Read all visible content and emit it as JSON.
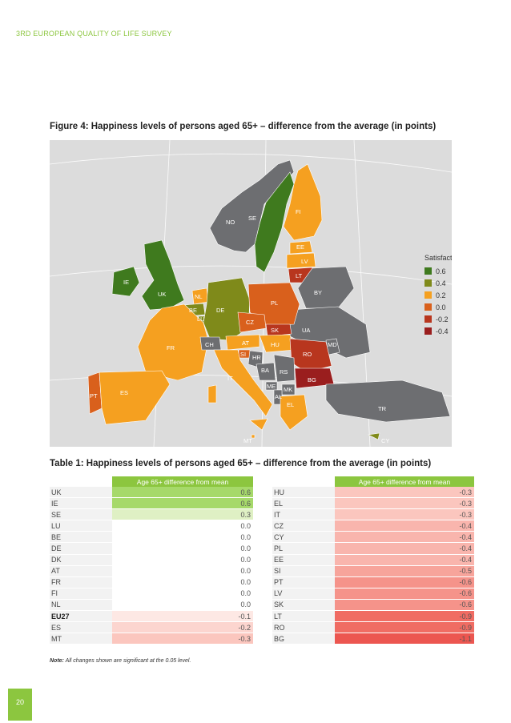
{
  "header": {
    "running_title": "3RD EUROPEAN QUALITY OF LIFE SURVEY"
  },
  "figure": {
    "title": "Figure 4: Happiness levels of persons aged 65+ – difference from the average (in points)",
    "legend_title": "Satisfaction",
    "legend": [
      {
        "label": "0.6",
        "color": "#3f7a1e"
      },
      {
        "label": "0.4",
        "color": "#7f8a1a"
      },
      {
        "label": "0.2",
        "color": "#f5a020"
      },
      {
        "label": "0.0",
        "color": "#d9601c"
      },
      {
        "label": "-0.2",
        "color": "#b8361e"
      },
      {
        "label": "-0.4",
        "color": "#9a1e1e"
      }
    ],
    "country_labels": [
      "NO",
      "SE",
      "FI",
      "EE",
      "LV",
      "LT",
      "BY",
      "IE",
      "UK",
      "NL",
      "BE",
      "LU",
      "DE",
      "PL",
      "CZ",
      "SK",
      "UA",
      "MD",
      "FR",
      "CH",
      "AT",
      "HU",
      "RO",
      "SI",
      "HR",
      "BA",
      "RS",
      "BG",
      "ME",
      "MK",
      "AL",
      "EL",
      "TR",
      "PT",
      "ES",
      "IT",
      "MT",
      "CY"
    ]
  },
  "table": {
    "title": "Table 1: Happiness levels of persons aged 65+ – difference from the average (in points)",
    "column_header": "Age 65+ difference from mean",
    "left": [
      {
        "country": "UK",
        "value": "0.6",
        "shade": "#a6d96a",
        "bold": false
      },
      {
        "country": "IE",
        "value": "0.6",
        "shade": "#a6d96a",
        "bold": false
      },
      {
        "country": "SE",
        "value": "0.3",
        "shade": "#dff0c4",
        "bold": false
      },
      {
        "country": "LU",
        "value": "0.0",
        "shade": "#ffffff",
        "bold": false
      },
      {
        "country": "BE",
        "value": "0.0",
        "shade": "#ffffff",
        "bold": false
      },
      {
        "country": "DE",
        "value": "0.0",
        "shade": "#ffffff",
        "bold": false
      },
      {
        "country": "DK",
        "value": "0.0",
        "shade": "#ffffff",
        "bold": false
      },
      {
        "country": "AT",
        "value": "0.0",
        "shade": "#ffffff",
        "bold": false
      },
      {
        "country": "FR",
        "value": "0.0",
        "shade": "#ffffff",
        "bold": false
      },
      {
        "country": "FI",
        "value": "0.0",
        "shade": "#ffffff",
        "bold": false
      },
      {
        "country": "NL",
        "value": "0.0",
        "shade": "#ffffff",
        "bold": false
      },
      {
        "country": "EU27",
        "value": "-0.1",
        "shade": "#fde8e4",
        "bold": true
      },
      {
        "country": "ES",
        "value": "-0.2",
        "shade": "#fcd5cf",
        "bold": false
      },
      {
        "country": "MT",
        "value": "-0.3",
        "shade": "#fbc6be",
        "bold": false
      }
    ],
    "right": [
      {
        "country": "HU",
        "value": "-0.3",
        "shade": "#fbc6be",
        "bold": false
      },
      {
        "country": "EL",
        "value": "-0.3",
        "shade": "#fbc6be",
        "bold": false
      },
      {
        "country": "IT",
        "value": "-0.3",
        "shade": "#fbc6be",
        "bold": false
      },
      {
        "country": "CZ",
        "value": "-0.4",
        "shade": "#f9b5ad",
        "bold": false
      },
      {
        "country": "CY",
        "value": "-0.4",
        "shade": "#f9b5ad",
        "bold": false
      },
      {
        "country": "PL",
        "value": "-0.4",
        "shade": "#f9b5ad",
        "bold": false
      },
      {
        "country": "EE",
        "value": "-0.4",
        "shade": "#f9b5ad",
        "bold": false
      },
      {
        "country": "SI",
        "value": "-0.5",
        "shade": "#f7a49b",
        "bold": false
      },
      {
        "country": "PT",
        "value": "-0.6",
        "shade": "#f5938a",
        "bold": false
      },
      {
        "country": "LV",
        "value": "-0.6",
        "shade": "#f5938a",
        "bold": false
      },
      {
        "country": "SK",
        "value": "-0.6",
        "shade": "#f5938a",
        "bold": false
      },
      {
        "country": "LT",
        "value": "-0.9",
        "shade": "#f06c63",
        "bold": false
      },
      {
        "country": "RO",
        "value": "-0.9",
        "shade": "#f06c63",
        "bold": false
      },
      {
        "country": "BG",
        "value": "-1.1",
        "shade": "#ec5650",
        "bold": false
      }
    ]
  },
  "note": {
    "label": "Note:",
    "text": " All changes shown are significant at the 0.05 level."
  },
  "page_number": "20"
}
